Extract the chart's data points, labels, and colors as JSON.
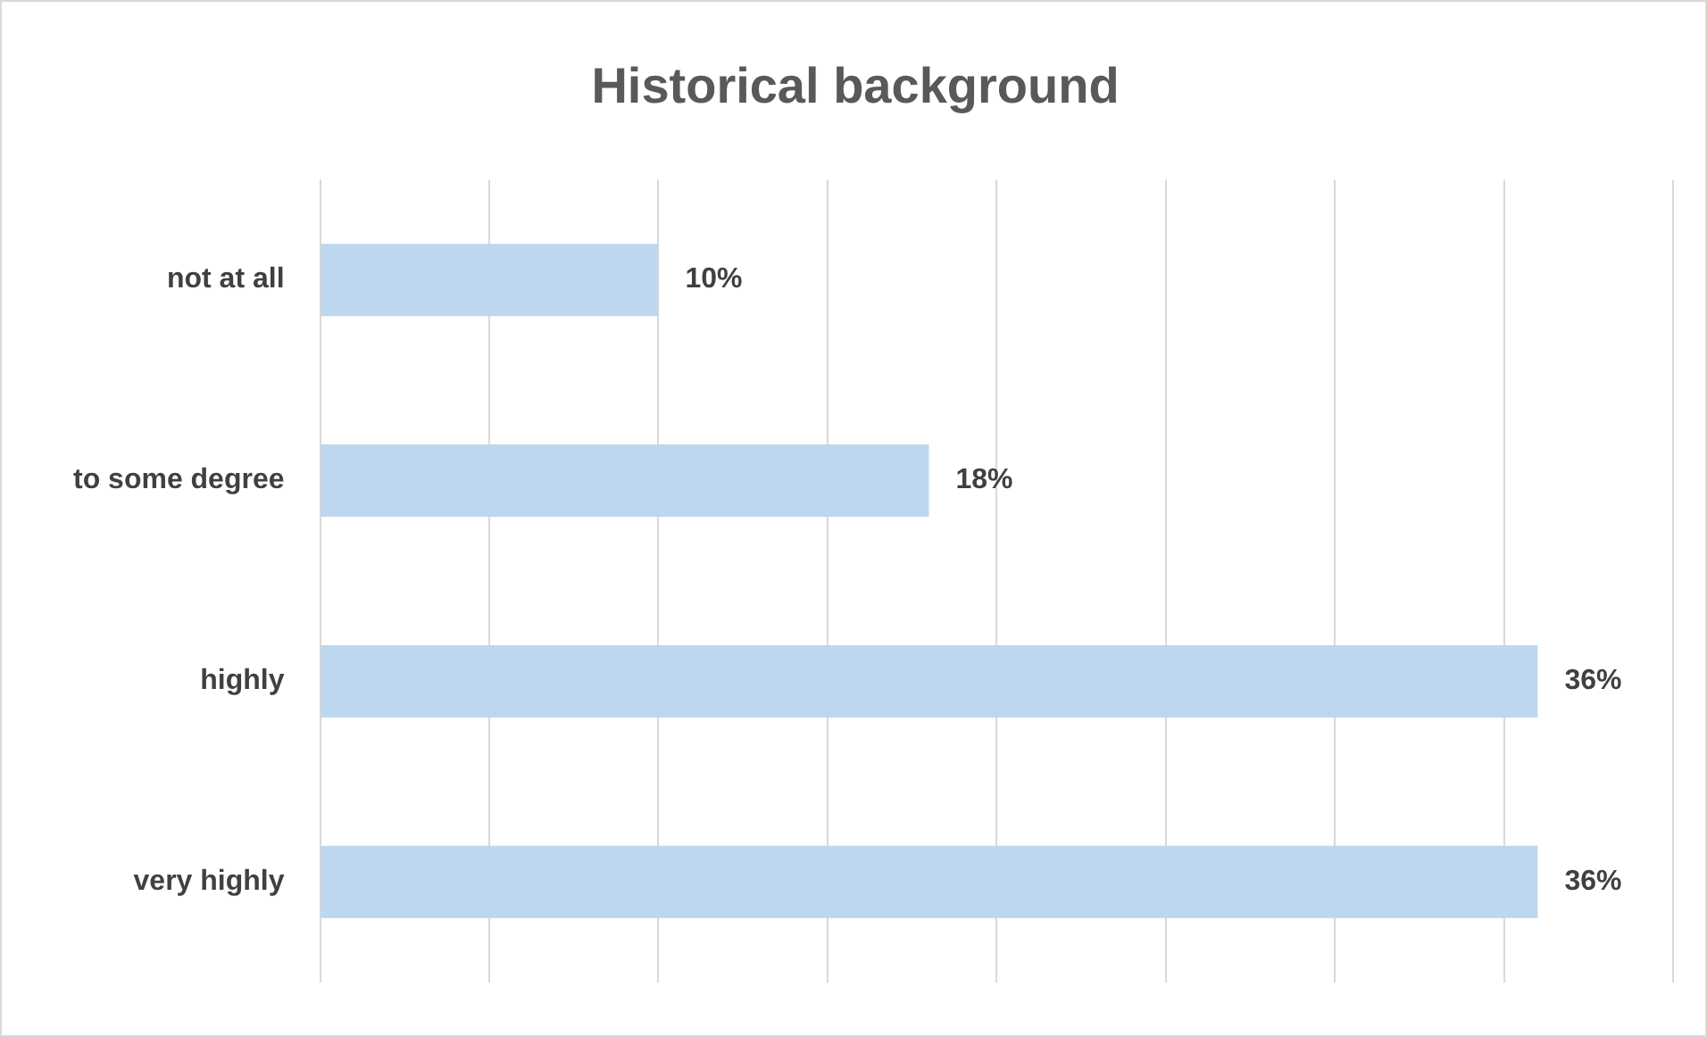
{
  "chart_data": {
    "type": "bar",
    "orientation": "horizontal",
    "title": "Historical background",
    "categories": [
      "not at all",
      "to some degree",
      "highly",
      "very highly"
    ],
    "values": [
      10,
      18,
      36,
      36
    ],
    "color": "#bdd7ee",
    "value_labels": [
      "10%",
      "18%",
      "36%",
      "36%"
    ],
    "xlim": [
      0,
      40
    ],
    "xticks": [
      0,
      5,
      10,
      15,
      20,
      25,
      30,
      35,
      40
    ],
    "grid": "x",
    "tick_labels": "y",
    "legend": false
  }
}
